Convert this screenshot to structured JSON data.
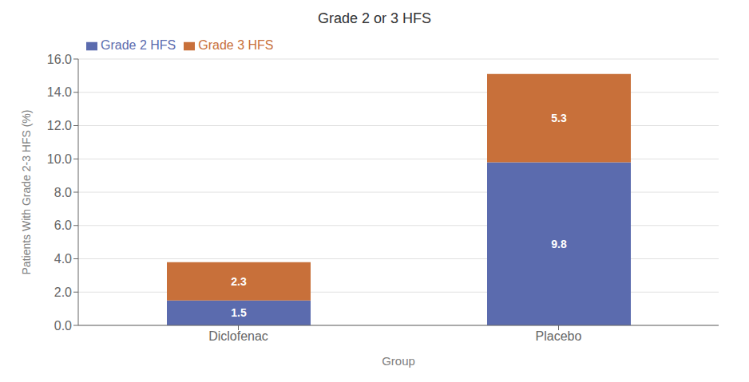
{
  "chart_data": {
    "type": "bar",
    "title": "Grade 2 or 3 HFS",
    "xlabel": "Group",
    "ylabel": "Patients With Grade 2-3 HFS (%)",
    "categories": [
      "Diclofenac",
      "Placebo"
    ],
    "series": [
      {
        "name": "Grade 2 HFS",
        "color": "#5B6BAE",
        "values": [
          1.5,
          9.8
        ]
      },
      {
        "name": "Grade 3 HFS",
        "color": "#C8703A",
        "values": [
          2.3,
          5.3
        ]
      }
    ],
    "stacked": true,
    "data_labels": true,
    "ylim": [
      0,
      16.0
    ],
    "yticks": [
      {
        "value": 0.0,
        "label": "0.0"
      },
      {
        "value": 2.0,
        "label": "2.0"
      },
      {
        "value": 4.0,
        "label": "4.0"
      },
      {
        "value": 6.0,
        "label": "6.0"
      },
      {
        "value": 8.0,
        "label": "8.0"
      },
      {
        "value": 10.0,
        "label": "10.0"
      },
      {
        "value": 12.0,
        "label": "12.0"
      },
      {
        "value": 14.0,
        "label": "14.0"
      },
      {
        "value": 16.0,
        "label": "16.0"
      }
    ],
    "grid": true,
    "legend": "upper left"
  }
}
